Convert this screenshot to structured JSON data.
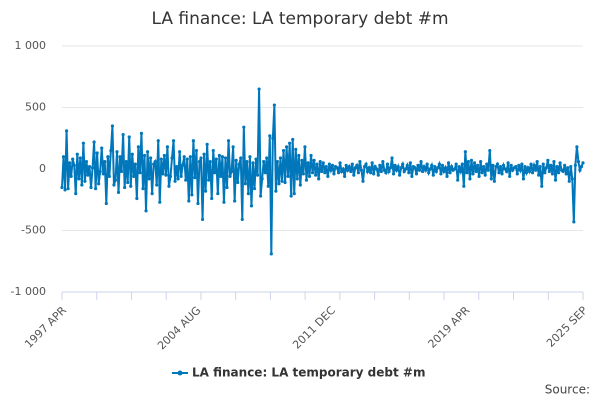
{
  "chart_data": {
    "type": "line",
    "title": "LA finance: LA temporary debt #m",
    "source": "Source:",
    "ylim": [
      -1000,
      1000
    ],
    "yticks": [
      {
        "value": -1000,
        "label": "-1 000"
      },
      -500,
      0,
      500,
      {
        "value": 1000,
        "label": "1 000"
      }
    ],
    "grid": true,
    "legend": "bottom",
    "categories_printed": null,
    "series": [
      {
        "name": "LA finance: LA temporary debt #m",
        "color": "#0077bb",
        "values": [
          -150,
          100,
          -170,
          310,
          -160,
          50,
          -60,
          80,
          30,
          -200,
          120,
          -80,
          90,
          -130,
          210,
          -100,
          60,
          -50,
          20,
          -150,
          10,
          220,
          -160,
          130,
          -120,
          -20,
          170,
          -40,
          60,
          -280,
          100,
          -60,
          150,
          350,
          -130,
          -90,
          140,
          -190,
          100,
          -20,
          280,
          -150,
          60,
          -110,
          260,
          -140,
          120,
          -60,
          40,
          -240,
          180,
          -30,
          290,
          -160,
          110,
          -340,
          140,
          -80,
          90,
          -200,
          40,
          60,
          -130,
          230,
          -270,
          80,
          -40,
          110,
          -50,
          180,
          -140,
          -60,
          90,
          230,
          -100,
          20,
          -80,
          140,
          -60,
          30,
          100,
          -90,
          80,
          -260,
          100,
          -210,
          230,
          -70,
          150,
          -280,
          60,
          90,
          -410,
          120,
          -180,
          200,
          -90,
          60,
          -240,
          150,
          -30,
          80,
          -200,
          110,
          -60,
          100,
          -270,
          90,
          -150,
          230,
          -60,
          -20,
          180,
          -260,
          70,
          -110,
          40,
          90,
          -410,
          340,
          -120,
          60,
          -200,
          100,
          -300,
          50,
          -160,
          80,
          -50,
          650,
          -220,
          -80,
          60,
          -30,
          90,
          -140,
          270,
          -690,
          250,
          520,
          -180,
          60,
          -120,
          90,
          -100,
          150,
          -110,
          180,
          -60,
          210,
          -220,
          240,
          -200,
          160,
          -80,
          110,
          -130,
          70,
          -40,
          180,
          -90,
          50,
          -60,
          110,
          -30,
          70,
          -50,
          40,
          -80,
          60,
          -20,
          50,
          -30,
          20,
          -60,
          40,
          -10,
          30,
          -40,
          20,
          10,
          -30,
          50,
          -20,
          0,
          -60,
          30,
          -10,
          20,
          -20,
          40,
          -50,
          10,
          30,
          -30,
          60,
          -10,
          -100,
          20,
          40,
          -20,
          10,
          -30,
          50,
          -40,
          20,
          0,
          -50,
          30,
          -20,
          60,
          -10,
          -30,
          40,
          -20,
          10,
          90,
          -40,
          30,
          -10,
          20,
          -50,
          10,
          40,
          -20,
          0,
          30,
          -30,
          50,
          -60,
          20,
          10,
          -40,
          30,
          -10,
          60,
          -20,
          20,
          -10,
          40,
          -30,
          0,
          30,
          -50,
          20,
          -20,
          10,
          40,
          -40,
          30,
          -20,
          10,
          -60,
          50,
          -30,
          20,
          -10,
          0,
          40,
          -90,
          20,
          -20,
          40,
          -140,
          140,
          -30,
          60,
          -80,
          70,
          -40,
          50,
          -20,
          30,
          -60,
          60,
          -30,
          20,
          -50,
          40,
          -10,
          150,
          -80,
          30,
          -100,
          20,
          40,
          -30,
          20,
          -40,
          30,
          0,
          -20,
          50,
          -60,
          30,
          -10,
          10,
          20,
          -40,
          30,
          -10,
          40,
          -80,
          20,
          -30,
          10,
          -20,
          40,
          -30,
          30,
          -10,
          60,
          -50,
          20,
          -140,
          40,
          -30,
          10,
          70,
          -20,
          30,
          -40,
          60,
          -90,
          20,
          -30,
          50,
          -10,
          -20,
          30,
          -40,
          10,
          -100,
          20,
          -80,
          -430,
          30,
          180,
          60,
          -10,
          20,
          50
        ]
      }
    ],
    "x_labels": [
      {
        "index": 0,
        "label": "1997 APR"
      },
      {
        "index": 88,
        "label": "2004 AUG"
      },
      {
        "index": 176,
        "label": "2011 DEC"
      },
      {
        "index": 264,
        "label": "2019 APR"
      },
      {
        "index": 341,
        "label": "2025 SEP"
      }
    ]
  }
}
